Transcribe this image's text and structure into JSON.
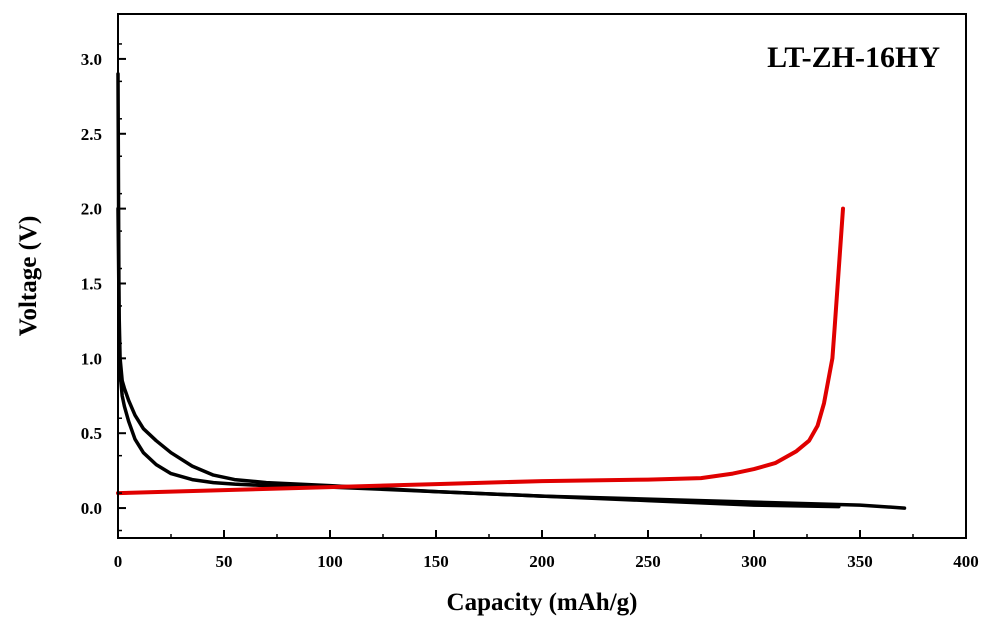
{
  "chart_data": {
    "type": "line",
    "title": "",
    "annotation": "LT-ZH-16HY",
    "xlabel": "Capacity (mAh/g)",
    "ylabel": "Voltage (V)",
    "xlim": [
      0,
      400
    ],
    "ylim": [
      -0.2,
      3.3
    ],
    "xticks": [
      0,
      50,
      100,
      150,
      200,
      250,
      300,
      350,
      400
    ],
    "yticks": [
      0.0,
      0.5,
      1.0,
      1.5,
      2.0,
      2.5,
      3.0
    ],
    "ytick_labels": [
      "0.0",
      "0.5",
      "1.0",
      "1.5",
      "2.0",
      "2.5",
      "3.0"
    ],
    "grid": false,
    "legend": "none",
    "series": [
      {
        "color": "#000000",
        "x": [
          0,
          0.5,
          1,
          2,
          3,
          5,
          8,
          12,
          18,
          25,
          35,
          45,
          55,
          70,
          100,
          150,
          200,
          250,
          300,
          350,
          371
        ],
        "y": [
          2.0,
          1.3,
          1.0,
          0.85,
          0.8,
          0.72,
          0.62,
          0.53,
          0.45,
          0.37,
          0.28,
          0.22,
          0.19,
          0.17,
          0.15,
          0.11,
          0.08,
          0.06,
          0.04,
          0.02,
          0.0
        ]
      },
      {
        "color": "#000000",
        "x": [
          0,
          0.5,
          1,
          2,
          3,
          5,
          8,
          12,
          18,
          25,
          35,
          45,
          55,
          70,
          100,
          150,
          200,
          250,
          300,
          340
        ],
        "y": [
          2.9,
          1.2,
          0.9,
          0.75,
          0.68,
          0.58,
          0.46,
          0.37,
          0.29,
          0.23,
          0.19,
          0.17,
          0.16,
          0.15,
          0.14,
          0.11,
          0.08,
          0.05,
          0.02,
          0.01
        ]
      },
      {
        "color": "#e00000",
        "x": [
          0,
          50,
          100,
          150,
          200,
          250,
          275,
          290,
          300,
          310,
          320,
          326,
          330,
          333,
          335,
          337,
          338,
          339,
          340,
          341,
          342
        ],
        "y": [
          0.1,
          0.12,
          0.14,
          0.16,
          0.18,
          0.19,
          0.2,
          0.23,
          0.26,
          0.3,
          0.38,
          0.45,
          0.55,
          0.7,
          0.85,
          1.0,
          1.2,
          1.4,
          1.6,
          1.8,
          2.0
        ]
      }
    ]
  }
}
